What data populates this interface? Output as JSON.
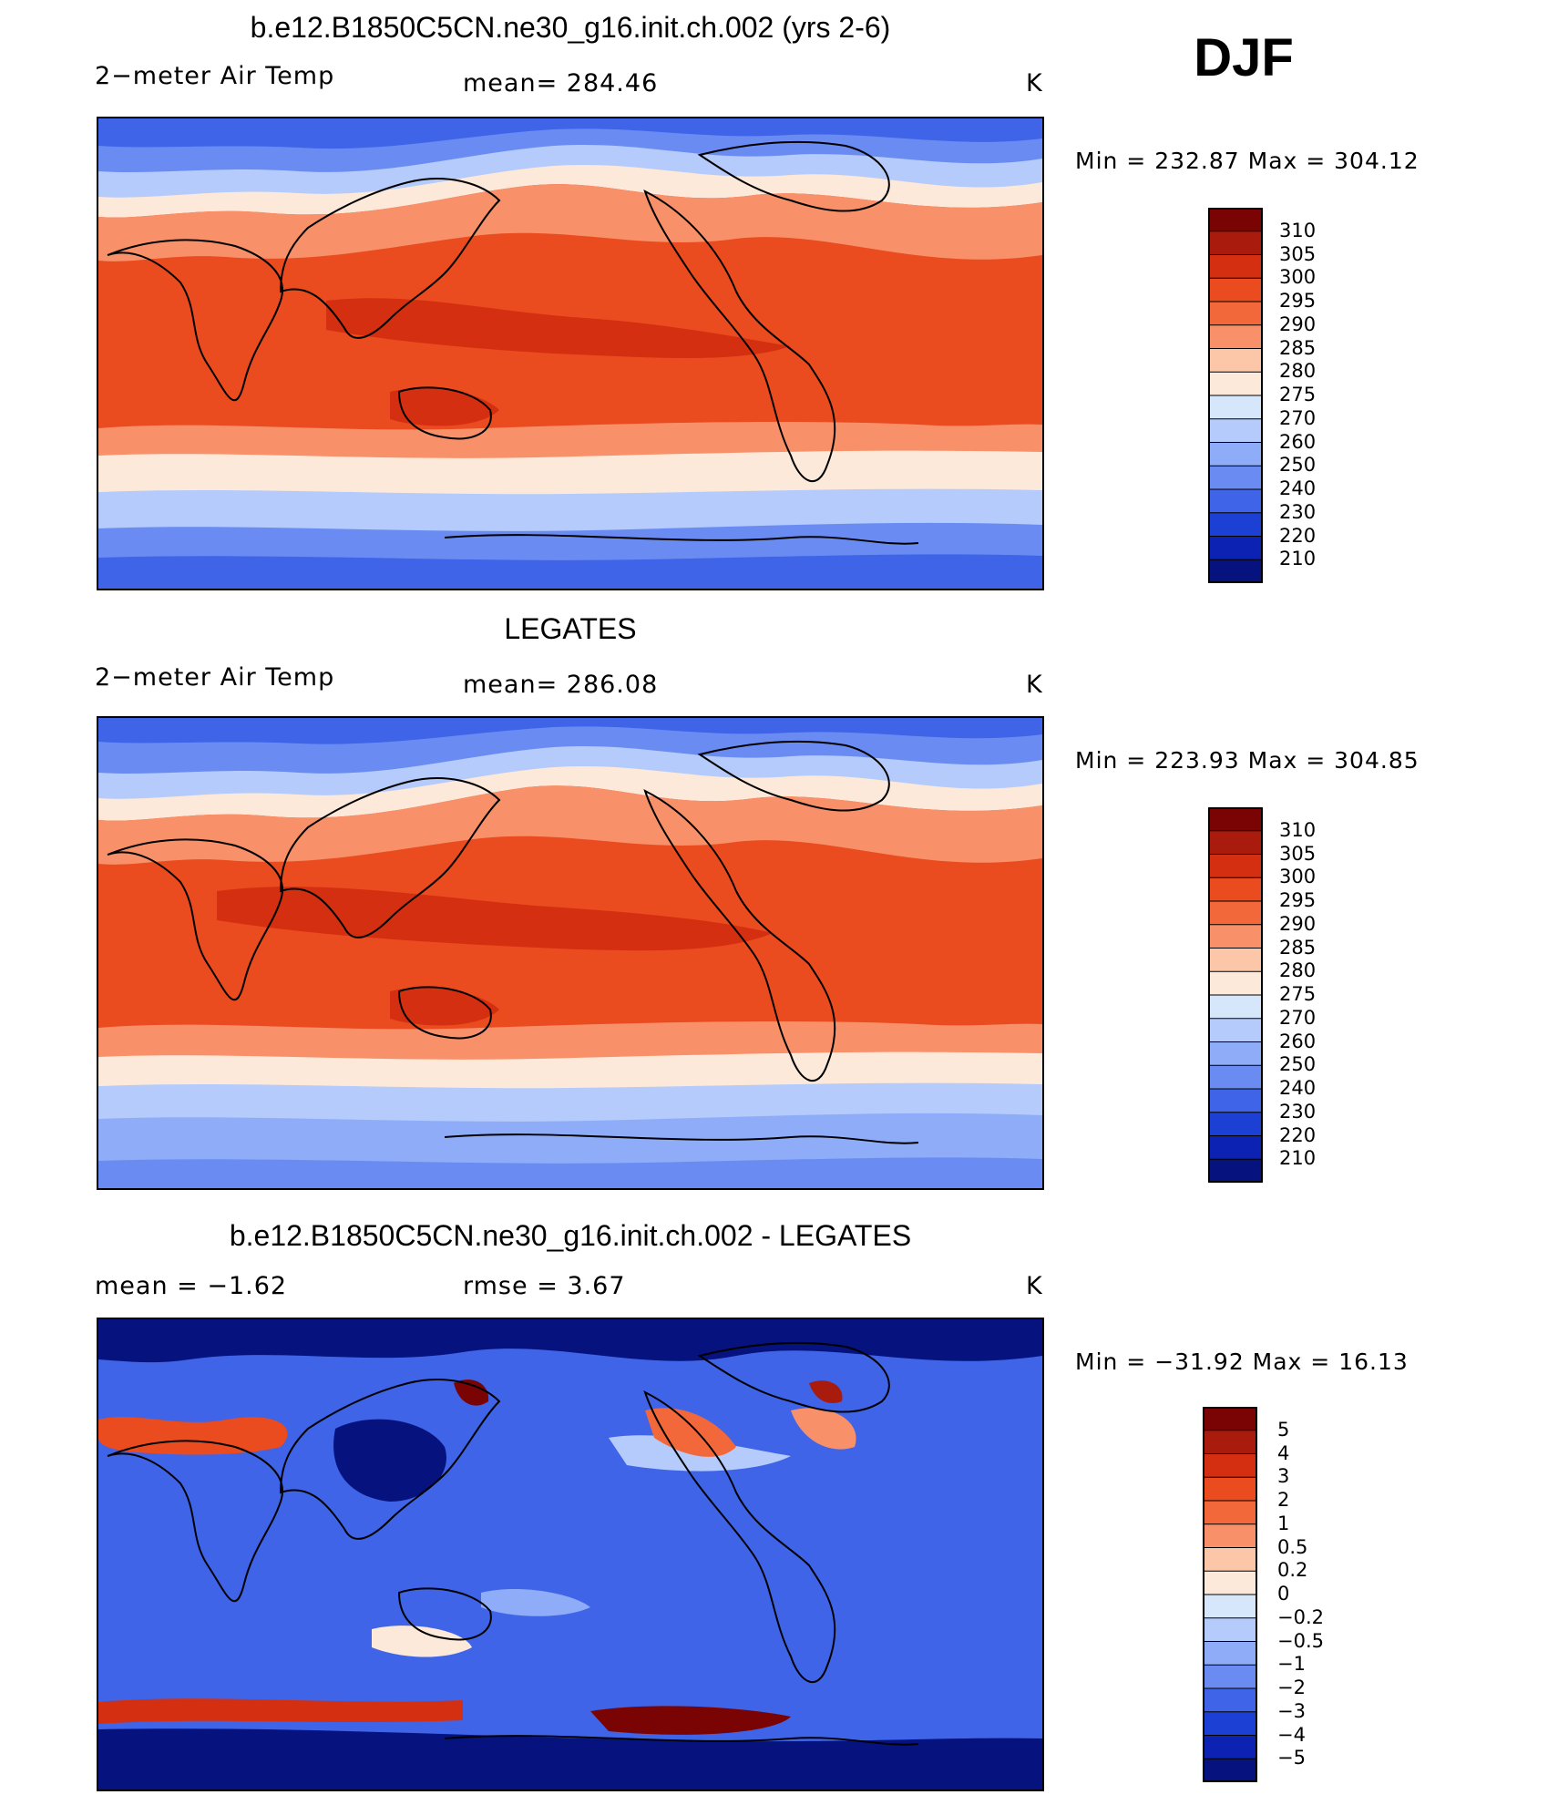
{
  "season": "DJF",
  "units": "K",
  "panels": [
    {
      "title": "b.e12.B1850C5CN.ne30_g16.init.ch.002 (yrs 2-6)",
      "left_label": "2−meter Air Temp",
      "center_label": "mean=  284.46",
      "right_label": "K",
      "minmax": "Min  =  232.87  Max  =  304.12",
      "levels": [
        "310",
        "305",
        "300",
        "295",
        "290",
        "285",
        "280",
        "275",
        "270",
        "260",
        "250",
        "240",
        "230",
        "220",
        "210"
      ],
      "mean_value": 284.46,
      "min_value": 232.87,
      "max_value": 304.12
    },
    {
      "title": "LEGATES",
      "left_label": "2−meter Air Temp",
      "center_label": "mean=  286.08",
      "right_label": "K",
      "minmax": "Min  =  223.93  Max  =  304.85",
      "levels": [
        "310",
        "305",
        "300",
        "295",
        "290",
        "285",
        "280",
        "275",
        "270",
        "260",
        "250",
        "240",
        "230",
        "220",
        "210"
      ],
      "mean_value": 286.08,
      "min_value": 223.93,
      "max_value": 304.85
    },
    {
      "title": "b.e12.B1850C5CN.ne30_g16.init.ch.002 - LEGATES",
      "left_label": "mean  =     −1.62",
      "center_label": "rmse  =      3.67",
      "right_label": "K",
      "minmax": "Min  =  −31.92  Max  =    16.13",
      "levels": [
        "5",
        "4",
        "3",
        "2",
        "1",
        "0.5",
        "0.2",
        "0",
        "−0.2",
        "−0.5",
        "−1",
        "−2",
        "−3",
        "−4",
        "−5"
      ],
      "mean_value": -1.62,
      "rmse_value": 3.67,
      "min_value": -31.92,
      "max_value": 16.13
    }
  ],
  "palette": [
    "#7a0403",
    "#a91b0d",
    "#d42f11",
    "#ea4b1f",
    "#f3683a",
    "#f8906a",
    "#fcc6a8",
    "#fde9d9",
    "#d7e7fb",
    "#b4cbfb",
    "#8eacf8",
    "#6a8cf2",
    "#3f64e8",
    "#1c3fd4",
    "#0b22b3",
    "#06127d"
  ]
}
